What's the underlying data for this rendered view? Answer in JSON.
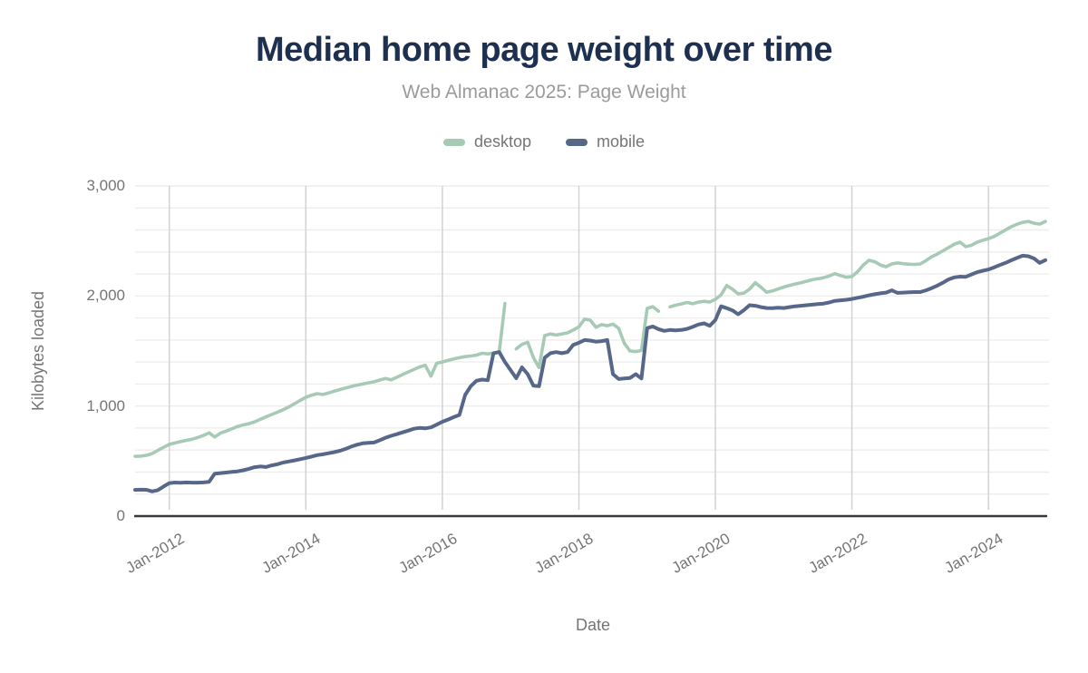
{
  "page": {
    "title": "Median home page weight over time",
    "subtitle": "Web Almanac 2025: Page Weight"
  },
  "legend": [
    {
      "label": "desktop",
      "color": "#a7cab6"
    },
    {
      "label": "mobile",
      "color": "#56678a"
    }
  ],
  "chart_data": {
    "type": "line",
    "title": "Median home page weight over time",
    "subtitle": "Web Almanac 2025: Page Weight",
    "xlabel": "Date",
    "ylabel": "Kilobytes loaded",
    "ylim": [
      0,
      3000
    ],
    "yticks": [
      0,
      1000,
      2000,
      3000
    ],
    "ytick_labels": [
      "0",
      "1,000",
      "2,000",
      "3,000"
    ],
    "y_minor_step": 200,
    "grid": {
      "horizontal": true,
      "vertical": true
    },
    "legend_position": "top",
    "xtick_labels": [
      "Jan-2012",
      "Jan-2014",
      "Jan-2016",
      "Jan-2018",
      "Jan-2020",
      "Jan-2022",
      "Jan-2024"
    ],
    "xtick_month_index": [
      6,
      30,
      54,
      78,
      102,
      126,
      150
    ],
    "x_months": [
      "2011-07",
      "2011-08",
      "2011-09",
      "2011-10",
      "2011-11",
      "2011-12",
      "2012-01",
      "2012-02",
      "2012-03",
      "2012-04",
      "2012-05",
      "2012-06",
      "2012-07",
      "2012-08",
      "2012-09",
      "2012-10",
      "2012-11",
      "2012-12",
      "2013-01",
      "2013-02",
      "2013-03",
      "2013-04",
      "2013-05",
      "2013-06",
      "2013-07",
      "2013-08",
      "2013-09",
      "2013-10",
      "2013-11",
      "2013-12",
      "2014-01",
      "2014-02",
      "2014-03",
      "2014-04",
      "2014-05",
      "2014-06",
      "2014-07",
      "2014-08",
      "2014-09",
      "2014-10",
      "2014-11",
      "2014-12",
      "2015-01",
      "2015-02",
      "2015-03",
      "2015-04",
      "2015-05",
      "2015-06",
      "2015-07",
      "2015-08",
      "2015-09",
      "2015-10",
      "2015-11",
      "2015-12",
      "2016-01",
      "2016-02",
      "2016-03",
      "2016-04",
      "2016-05",
      "2016-06",
      "2016-07",
      "2016-08",
      "2016-09",
      "2016-10",
      "2016-11",
      "2016-12",
      "2017-01",
      "2017-02",
      "2017-03",
      "2017-04",
      "2017-05",
      "2017-06",
      "2017-07",
      "2017-08",
      "2017-09",
      "2017-10",
      "2017-11",
      "2017-12",
      "2018-01",
      "2018-02",
      "2018-03",
      "2018-04",
      "2018-05",
      "2018-06",
      "2018-07",
      "2018-08",
      "2018-09",
      "2018-10",
      "2018-11",
      "2018-12",
      "2019-01",
      "2019-02",
      "2019-03",
      "2019-04",
      "2019-05",
      "2019-06",
      "2019-07",
      "2019-08",
      "2019-09",
      "2019-10",
      "2019-11",
      "2019-12",
      "2020-01",
      "2020-02",
      "2020-03",
      "2020-04",
      "2020-05",
      "2020-06",
      "2020-07",
      "2020-08",
      "2020-09",
      "2020-10",
      "2020-11",
      "2020-12",
      "2021-01",
      "2021-02",
      "2021-03",
      "2021-04",
      "2021-05",
      "2021-06",
      "2021-07",
      "2021-08",
      "2021-09",
      "2021-10",
      "2021-11",
      "2021-12",
      "2022-01",
      "2022-02",
      "2022-03",
      "2022-04",
      "2022-05",
      "2022-06",
      "2022-07",
      "2022-08",
      "2022-09",
      "2022-10",
      "2022-11",
      "2022-12",
      "2023-01",
      "2023-02",
      "2023-03",
      "2023-04",
      "2023-05",
      "2023-06",
      "2023-07",
      "2023-08",
      "2023-09",
      "2023-10",
      "2023-11",
      "2023-12",
      "2024-01",
      "2024-02",
      "2024-03",
      "2024-04",
      "2024-05",
      "2024-06",
      "2024-07",
      "2024-08",
      "2024-09",
      "2024-10",
      "2024-11"
    ],
    "series": [
      {
        "name": "desktop",
        "color": "#a7cab6",
        "values": [
          543,
          545,
          552,
          568,
          597,
          625,
          651,
          664,
          677,
          688,
          698,
          714,
          733,
          757,
          719,
          753,
          772,
          793,
          814,
          828,
          840,
          856,
          879,
          902,
          923,
          944,
          966,
          991,
          1020,
          1051,
          1080,
          1099,
          1113,
          1104,
          1119,
          1135,
          1150,
          1164,
          1178,
          1190,
          1200,
          1211,
          1221,
          1236,
          1250,
          1239,
          1261,
          1286,
          1310,
          1332,
          1355,
          1371,
          1272,
          1389,
          1400,
          1414,
          1428,
          1440,
          1449,
          1455,
          1463,
          1479,
          1474,
          1481,
          1489,
          1931,
          null,
          1520,
          1560,
          1580,
          1440,
          1350,
          1640,
          1655,
          1645,
          1655,
          1665,
          1690,
          1720,
          1790,
          1780,
          1715,
          1740,
          1730,
          1745,
          1705,
          1570,
          1500,
          1495,
          1505,
          1887,
          1903,
          1862,
          null,
          1901,
          1916,
          1928,
          1941,
          1930,
          1944,
          1952,
          1945,
          1969,
          2011,
          2096,
          2061,
          2019,
          2026,
          2062,
          2121,
          2079,
          2034,
          2046,
          2063,
          2081,
          2096,
          2109,
          2121,
          2134,
          2148,
          2156,
          2166,
          2181,
          2203,
          2186,
          2171,
          2177,
          2221,
          2281,
          2325,
          2311,
          2282,
          2266,
          2291,
          2300,
          2294,
          2289,
          2287,
          2291,
          2321,
          2356,
          2381,
          2411,
          2440,
          2471,
          2489,
          2448,
          2461,
          2489,
          2506,
          2521,
          2541,
          2571,
          2601,
          2629,
          2651,
          2669,
          2678,
          2661,
          2653,
          2678
        ]
      },
      {
        "name": "mobile",
        "color": "#56678a",
        "values": [
          238,
          240,
          239,
          224,
          236,
          269,
          299,
          305,
          303,
          306,
          304,
          304,
          306,
          311,
          386,
          391,
          396,
          401,
          406,
          416,
          429,
          444,
          451,
          446,
          461,
          471,
          486,
          496,
          506,
          517,
          528,
          541,
          554,
          561,
          571,
          581,
          593,
          611,
          631,
          649,
          661,
          666,
          668,
          689,
          711,
          729,
          744,
          761,
          776,
          794,
          801,
          797,
          806,
          831,
          857,
          877,
          899,
          919,
          1100,
          1180,
          1230,
          1240,
          1235,
          1480,
          1491,
          1400,
          1327,
          1253,
          1352,
          1290,
          1185,
          1180,
          1440,
          1480,
          1490,
          1480,
          1490,
          1555,
          1575,
          1600,
          1595,
          1585,
          1590,
          1600,
          1290,
          1245,
          1250,
          1255,
          1290,
          1250,
          1708,
          1723,
          1699,
          1683,
          1691,
          1687,
          1691,
          1701,
          1719,
          1741,
          1751,
          1729,
          1781,
          1906,
          1889,
          1869,
          1834,
          1871,
          1916,
          1911,
          1899,
          1891,
          1889,
          1894,
          1891,
          1899,
          1906,
          1911,
          1916,
          1921,
          1926,
          1931,
          1941,
          1956,
          1961,
          1966,
          1973,
          1984,
          1994,
          2006,
          2016,
          2024,
          2031,
          2051,
          2028,
          2031,
          2034,
          2036,
          2036,
          2051,
          2071,
          2094,
          2121,
          2151,
          2169,
          2176,
          2174,
          2196,
          2216,
          2229,
          2241,
          2261,
          2281,
          2301,
          2324,
          2346,
          2366,
          2361,
          2341,
          2301,
          2326
        ]
      }
    ],
    "colors": {
      "title": "#1e3050",
      "subtitle": "#9b9b9b",
      "axis_text": "#757575",
      "grid_horizontal": "#ededed",
      "grid_vertical": "#d2d2d2",
      "axis_line": "#35393d"
    }
  }
}
